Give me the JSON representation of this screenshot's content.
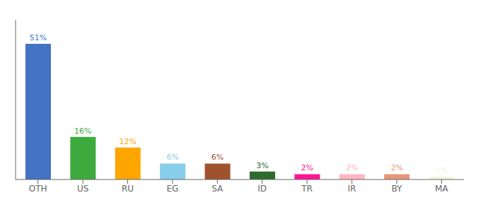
{
  "chart_data": {
    "type": "bar",
    "categories": [
      "OTH",
      "US",
      "RU",
      "EG",
      "SA",
      "ID",
      "TR",
      "IR",
      "BY",
      "MA"
    ],
    "values": [
      51,
      16,
      12,
      6,
      6,
      3,
      2,
      2,
      2,
      1
    ],
    "value_labels": [
      "51%",
      "16%",
      "12%",
      "6%",
      "6%",
      "3%",
      "2%",
      "2%",
      "2%",
      "1%"
    ],
    "colors": [
      "#4472C4",
      "#3DAA3D",
      "#FFA500",
      "#87CEEB",
      "#A0522D",
      "#2E6B2E",
      "#FF1493",
      "#FFB6C1",
      "#E8967A",
      "#F5F5DC"
    ],
    "ylim": [
      0,
      60
    ],
    "data_labels": true,
    "tick_labels": "x",
    "grid": false
  }
}
